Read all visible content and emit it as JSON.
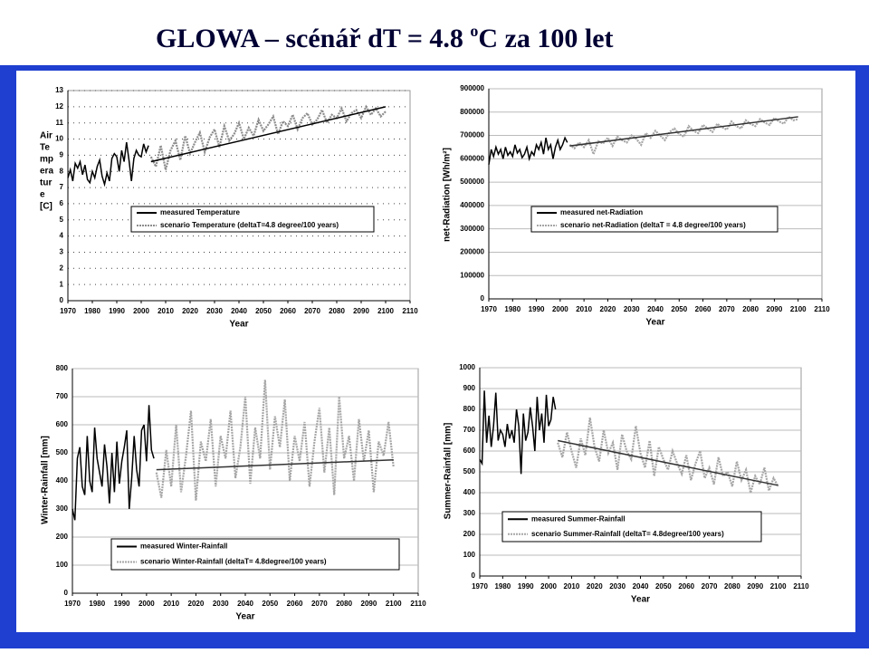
{
  "title": [
    "GLOWA – scénář dT = 4.8 ",
    "o",
    "C za 100 let"
  ],
  "chart_data": [
    {
      "type": "line",
      "ylabel": [
        "Air",
        "Te",
        "mp",
        "era",
        "tur",
        "e",
        "[C]"
      ],
      "xlabel": "Year",
      "xlim": [
        1970,
        2110
      ],
      "xticks": [
        1970,
        1980,
        1990,
        2000,
        2010,
        2020,
        2030,
        2040,
        2050,
        2060,
        2070,
        2080,
        2090,
        2100,
        2110
      ],
      "ylim": [
        0,
        13
      ],
      "yticks": [
        0,
        1,
        2,
        3,
        4,
        5,
        6,
        7,
        8,
        9,
        10,
        11,
        12,
        13
      ],
      "grid": true,
      "grid_style": "dotted",
      "series": [
        {
          "name": "measured Temperature",
          "color": "#000000",
          "style": "solid",
          "x": [
            1970,
            1971,
            1972,
            1973,
            1974,
            1975,
            1976,
            1977,
            1978,
            1979,
            1980,
            1981,
            1982,
            1983,
            1984,
            1985,
            1986,
            1987,
            1988,
            1989,
            1990,
            1991,
            1992,
            1993,
            1994,
            1995,
            1996,
            1997,
            1998,
            1999,
            2000,
            2001,
            2002,
            2003
          ],
          "values": [
            7.6,
            8.1,
            7.4,
            8.5,
            8.2,
            8.6,
            7.8,
            8.4,
            7.5,
            7.3,
            8.0,
            7.6,
            8.3,
            8.7,
            7.7,
            7.2,
            7.9,
            7.4,
            8.8,
            9.1,
            8.9,
            8.0,
            9.3,
            8.6,
            9.8,
            8.7,
            7.4,
            8.8,
            9.3,
            9.0,
            8.9,
            9.7,
            9.2,
            9.6
          ]
        },
        {
          "name": "scenario Temperature (deltaT=4.8 degree/100 years)",
          "color": "#8c8c8c",
          "style": "dotted",
          "x": [
            2004,
            2006,
            2008,
            2010,
            2012,
            2014,
            2016,
            2018,
            2020,
            2022,
            2024,
            2026,
            2028,
            2030,
            2032,
            2034,
            2036,
            2038,
            2040,
            2042,
            2044,
            2046,
            2048,
            2050,
            2052,
            2054,
            2056,
            2058,
            2060,
            2062,
            2064,
            2066,
            2068,
            2070,
            2072,
            2074,
            2076,
            2078,
            2080,
            2082,
            2084,
            2086,
            2088,
            2090,
            2092,
            2094,
            2096,
            2098,
            2100
          ],
          "values": [
            8.9,
            8.3,
            9.6,
            8.1,
            9.3,
            9.9,
            8.7,
            10.2,
            9.1,
            9.8,
            10.4,
            9.2,
            10.1,
            10.6,
            9.5,
            10.8,
            9.9,
            10.3,
            11.0,
            10.0,
            10.7,
            10.2,
            11.2,
            10.5,
            10.9,
            11.4,
            10.3,
            11.1,
            10.8,
            11.5,
            10.6,
            11.3,
            11.6,
            10.9,
            11.2,
            11.8,
            11.0,
            11.5,
            11.3,
            11.9,
            11.1,
            11.6,
            11.8,
            11.3,
            12.0,
            11.5,
            11.9,
            11.4,
            11.7
          ]
        }
      ],
      "trend": {
        "x": [
          2004,
          2100
        ],
        "values": [
          8.6,
          12.0
        ],
        "color": "#000000"
      }
    },
    {
      "type": "line",
      "ylabel": "net-Radiation [Wh/m²]",
      "xlabel": "Year",
      "xlim": [
        1970,
        2110
      ],
      "xticks": [
        1970,
        1980,
        1990,
        2000,
        2010,
        2020,
        2030,
        2040,
        2050,
        2060,
        2070,
        2080,
        2090,
        2100,
        2110
      ],
      "ylim": [
        0,
        900000
      ],
      "yticks": [
        0,
        100000,
        200000,
        300000,
        400000,
        500000,
        600000,
        700000,
        800000,
        900000
      ],
      "grid": true,
      "grid_style": "solid",
      "series": [
        {
          "name": "measured net-Radiation",
          "color": "#000000",
          "style": "solid",
          "x": [
            1970,
            1971,
            1972,
            1973,
            1974,
            1975,
            1976,
            1977,
            1978,
            1979,
            1980,
            1981,
            1982,
            1983,
            1984,
            1985,
            1986,
            1987,
            1988,
            1989,
            1990,
            1991,
            1992,
            1993,
            1994,
            1995,
            1996,
            1997,
            1998,
            1999,
            2000,
            2001,
            2002,
            2003
          ],
          "values": [
            575000,
            640000,
            610000,
            650000,
            620000,
            640000,
            600000,
            650000,
            615000,
            630000,
            610000,
            660000,
            625000,
            640000,
            605000,
            620000,
            650000,
            600000,
            630000,
            615000,
            660000,
            640000,
            670000,
            620000,
            690000,
            640000,
            660000,
            600000,
            650000,
            680000,
            640000,
            660000,
            690000,
            670000
          ]
        },
        {
          "name": "scenario net-Radiation (deltaT = 4.8 degree/100 years)",
          "color": "#a6a6a6",
          "style": "dotted",
          "x": [
            2004,
            2006,
            2008,
            2010,
            2012,
            2014,
            2016,
            2018,
            2020,
            2022,
            2024,
            2026,
            2028,
            2030,
            2032,
            2034,
            2036,
            2038,
            2040,
            2042,
            2044,
            2046,
            2048,
            2050,
            2052,
            2054,
            2056,
            2058,
            2060,
            2062,
            2064,
            2066,
            2068,
            2070,
            2072,
            2074,
            2076,
            2078,
            2080,
            2082,
            2084,
            2086,
            2088,
            2090,
            2092,
            2094,
            2096,
            2098,
            2100
          ],
          "values": [
            660000,
            645000,
            670000,
            650000,
            680000,
            620000,
            675000,
            665000,
            690000,
            655000,
            695000,
            680000,
            670000,
            700000,
            685000,
            660000,
            710000,
            690000,
            720000,
            700000,
            680000,
            715000,
            730000,
            705000,
            695000,
            740000,
            720000,
            710000,
            745000,
            730000,
            715000,
            750000,
            735000,
            725000,
            760000,
            740000,
            730000,
            765000,
            750000,
            740000,
            770000,
            755000,
            745000,
            775000,
            760000,
            750000,
            780000,
            765000,
            770000
          ]
        }
      ],
      "trend": {
        "x": [
          2004,
          2100
        ],
        "values": [
          655000,
          780000
        ],
        "color": "#333333"
      }
    },
    {
      "type": "line",
      "ylabel": "Winter-Rainfall [mm]",
      "xlabel": "Year",
      "xlim": [
        1970,
        2110
      ],
      "xticks": [
        1970,
        1980,
        1990,
        2000,
        2010,
        2020,
        2030,
        2040,
        2050,
        2060,
        2070,
        2080,
        2090,
        2100,
        2110
      ],
      "ylim": [
        0,
        800
      ],
      "yticks": [
        0,
        100,
        200,
        300,
        400,
        500,
        600,
        700,
        800
      ],
      "grid": true,
      "grid_style": "solid",
      "series": [
        {
          "name": "measured Winter-Rainfall",
          "color": "#000000",
          "style": "solid",
          "x": [
            1970,
            1971,
            1972,
            1973,
            1974,
            1975,
            1976,
            1977,
            1978,
            1979,
            1980,
            1981,
            1982,
            1983,
            1984,
            1985,
            1986,
            1987,
            1988,
            1989,
            1990,
            1991,
            1992,
            1993,
            1994,
            1995,
            1996,
            1997,
            1998,
            1999,
            2000,
            2001,
            2002,
            2003
          ],
          "values": [
            300,
            260,
            480,
            520,
            380,
            350,
            560,
            400,
            360,
            590,
            480,
            430,
            380,
            530,
            450,
            320,
            500,
            360,
            540,
            390,
            470,
            520,
            580,
            300,
            410,
            560,
            440,
            380,
            580,
            600,
            470,
            670,
            510,
            480
          ]
        },
        {
          "name": "scenario Winter-Rainfall (deltaT= 4.8degree/100 years)",
          "color": "#a6a6a6",
          "style": "dotted",
          "x": [
            2004,
            2006,
            2008,
            2010,
            2012,
            2014,
            2016,
            2018,
            2020,
            2022,
            2024,
            2026,
            2028,
            2030,
            2032,
            2034,
            2036,
            2038,
            2040,
            2042,
            2044,
            2046,
            2048,
            2050,
            2052,
            2054,
            2056,
            2058,
            2060,
            2062,
            2064,
            2066,
            2068,
            2070,
            2072,
            2074,
            2076,
            2078,
            2080,
            2082,
            2084,
            2086,
            2088,
            2090,
            2092,
            2094,
            2096,
            2098,
            2100
          ],
          "values": [
            430,
            340,
            510,
            380,
            600,
            360,
            490,
            650,
            330,
            540,
            470,
            620,
            380,
            560,
            480,
            650,
            410,
            520,
            700,
            390,
            590,
            480,
            760,
            440,
            630,
            520,
            690,
            400,
            560,
            470,
            610,
            380,
            540,
            660,
            430,
            590,
            350,
            700,
            480,
            560,
            400,
            620,
            470,
            580,
            360,
            540,
            490,
            610,
            450
          ]
        }
      ],
      "trend": {
        "x": [
          2004,
          2100
        ],
        "values": [
          440,
          475
        ],
        "color": "#333333"
      }
    },
    {
      "type": "line",
      "ylabel": "Summer-Rainfall [mm]",
      "xlabel": "Year",
      "xlim": [
        1970,
        2110
      ],
      "xticks": [
        1970,
        1980,
        1990,
        2000,
        2010,
        2020,
        2030,
        2040,
        2050,
        2060,
        2070,
        2080,
        2090,
        2100,
        2110
      ],
      "ylim": [
        0,
        1000
      ],
      "yticks": [
        0,
        100,
        200,
        300,
        400,
        500,
        600,
        700,
        800,
        900,
        1000
      ],
      "grid": true,
      "grid_style": "solid",
      "series": [
        {
          "name": "measured Summer-Rainfall",
          "color": "#000000",
          "style": "solid",
          "x": [
            1970,
            1971,
            1972,
            1973,
            1974,
            1975,
            1976,
            1977,
            1978,
            1979,
            1980,
            1981,
            1982,
            1983,
            1984,
            1985,
            1986,
            1987,
            1988,
            1989,
            1990,
            1991,
            1992,
            1993,
            1994,
            1995,
            1996,
            1997,
            1998,
            1999,
            2000,
            2001,
            2002,
            2003
          ],
          "values": [
            560,
            540,
            890,
            640,
            770,
            620,
            720,
            880,
            650,
            700,
            680,
            620,
            730,
            660,
            700,
            640,
            800,
            720,
            490,
            780,
            650,
            690,
            810,
            720,
            600,
            860,
            700,
            780,
            640,
            870,
            720,
            750,
            860,
            800
          ]
        },
        {
          "name": "scenario Summer-Rainfall (deltaT= 4.8degree/100 years)",
          "color": "#a6a6a6",
          "style": "dotted",
          "x": [
            2004,
            2006,
            2008,
            2010,
            2012,
            2014,
            2016,
            2018,
            2020,
            2022,
            2024,
            2026,
            2028,
            2030,
            2032,
            2034,
            2036,
            2038,
            2040,
            2042,
            2044,
            2046,
            2048,
            2050,
            2052,
            2054,
            2056,
            2058,
            2060,
            2062,
            2064,
            2066,
            2068,
            2070,
            2072,
            2074,
            2076,
            2078,
            2080,
            2082,
            2084,
            2086,
            2088,
            2090,
            2092,
            2094,
            2096,
            2098,
            2100
          ],
          "values": [
            640,
            570,
            690,
            600,
            520,
            660,
            580,
            760,
            620,
            550,
            700,
            590,
            640,
            510,
            680,
            600,
            560,
            720,
            590,
            520,
            650,
            480,
            620,
            560,
            510,
            600,
            540,
            490,
            580,
            460,
            540,
            600,
            470,
            520,
            440,
            570,
            480,
            500,
            430,
            550,
            460,
            510,
            400,
            480,
            440,
            520,
            410,
            470,
            430
          ]
        }
      ],
      "trend": {
        "x": [
          2004,
          2100
        ],
        "values": [
          650,
          435
        ],
        "color": "#333333"
      }
    }
  ]
}
